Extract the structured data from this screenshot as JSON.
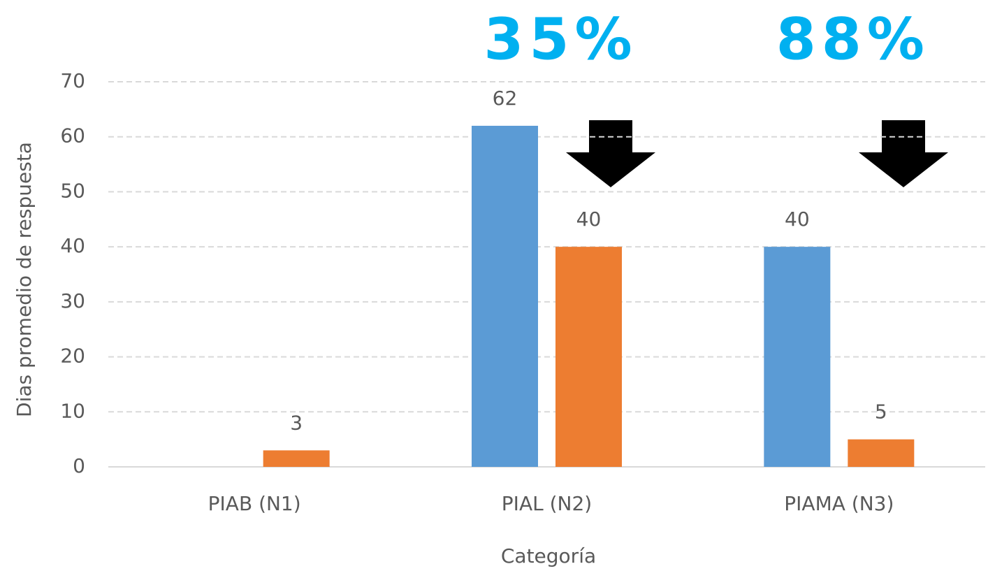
{
  "chart_data": {
    "type": "bar",
    "categories": [
      "PIAB (N1)",
      "PIAL (N2)",
      "PIAMA (N3)"
    ],
    "series": [
      {
        "color": "#5b9bd5",
        "values": [
          null,
          62,
          40
        ]
      },
      {
        "color": "#ed7d31",
        "values": [
          3,
          40,
          5
        ]
      }
    ],
    "ylim": [
      0,
      70
    ],
    "yticks": [
      0,
      10,
      20,
      30,
      40,
      50,
      60,
      70
    ],
    "grid": true,
    "y_label": "Dias promedio de respuesta",
    "x_label": "Categoría",
    "annotations": [
      "35%",
      "88%"
    ]
  }
}
